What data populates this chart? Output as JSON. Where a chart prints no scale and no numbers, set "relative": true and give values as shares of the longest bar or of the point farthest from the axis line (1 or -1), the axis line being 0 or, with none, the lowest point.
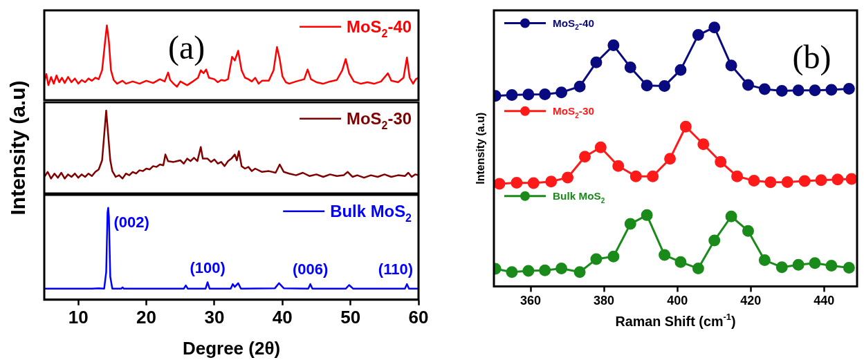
{
  "chart_data": [
    {
      "type": "line",
      "annotations": [
        "(a)"
      ],
      "xlim": [
        5,
        60
      ],
      "relative": true,
      "tick_labels": false,
      "legend": "top right",
      "marker": "none",
      "series": [
        {
          "name": "MoS$_{2}$-40",
          "color": "#ff0000",
          "x": [
            5,
            5.3,
            5.6,
            6,
            6.4,
            6.8,
            7.2,
            7.6,
            8,
            8.5,
            9,
            9.5,
            10,
            10.5,
            11,
            11.5,
            12,
            12.5,
            13,
            13.5,
            13.9,
            14.2,
            14.5,
            14.8,
            15.2,
            15.7,
            16.5,
            17,
            18,
            19,
            20,
            21,
            22,
            22.7,
            23.2,
            23.5,
            24,
            24.5,
            25,
            26,
            27,
            27.6,
            28,
            28.4,
            28.8,
            29.2,
            30,
            30.5,
            31,
            31.5,
            32,
            32.6,
            33,
            33.5,
            34,
            34.5,
            35,
            35.5,
            36,
            36.5,
            37,
            38,
            38.7,
            39.2,
            39.6,
            40,
            40.5,
            41,
            42,
            43.2,
            43.7,
            44.2,
            45,
            46,
            47,
            48,
            48.8,
            49.3,
            49.8,
            50.5,
            51.5,
            52.5,
            53.5,
            54.5,
            55.5,
            56,
            57,
            57.8,
            58.3,
            58.7,
            59.2,
            59.6,
            60
          ],
          "values": [
            0.25,
            0.35,
            0.2,
            0.31,
            0.22,
            0.33,
            0.24,
            0.3,
            0.23,
            0.31,
            0.24,
            0.29,
            0.22,
            0.27,
            0.24,
            0.29,
            0.26,
            0.3,
            0.28,
            0.4,
            0.75,
            1,
            0.78,
            0.4,
            0.27,
            0.22,
            0.26,
            0.22,
            0.25,
            0.22,
            0.26,
            0.23,
            0.28,
            0.25,
            0.37,
            0.27,
            0.22,
            0.18,
            0.25,
            0.2,
            0.26,
            0.3,
            0.4,
            0.36,
            0.41,
            0.3,
            0.28,
            0.24,
            0.27,
            0.26,
            0.28,
            0.58,
            0.53,
            0.66,
            0.4,
            0.3,
            0.28,
            0.25,
            0.3,
            0.22,
            0.26,
            0.26,
            0.4,
            0.71,
            0.55,
            0.32,
            0.24,
            0.22,
            0.25,
            0.28,
            0.41,
            0.28,
            0.24,
            0.22,
            0.25,
            0.27,
            0.4,
            0.55,
            0.36,
            0.25,
            0.22,
            0.24,
            0.22,
            0.25,
            0.36,
            0.26,
            0.24,
            0.3,
            0.57,
            0.3,
            0.22,
            0.28,
            0.3
          ]
        }
      ]
    },
    {
      "type": "line",
      "ylabel": "Intensity (a.u)",
      "xlim": [
        5,
        60
      ],
      "relative": true,
      "tick_labels": false,
      "legend": "top right",
      "marker": "none",
      "series": [
        {
          "name": "MoS$_{2}$-30",
          "color": "#800000",
          "x": [
            5,
            5.5,
            6,
            6.5,
            7,
            7.5,
            8,
            8.5,
            9,
            9.5,
            10,
            10.5,
            11,
            11.5,
            12,
            12.5,
            13,
            13.5,
            13.8,
            14.1,
            14.4,
            14.7,
            15,
            15.5,
            16,
            16.5,
            17,
            17.5,
            18,
            18.5,
            19,
            19.5,
            20,
            20.5,
            21,
            21.5,
            22,
            22.5,
            22.8,
            23.2,
            24,
            25,
            25.5,
            26,
            26.5,
            27,
            27.5,
            28,
            28.3,
            29,
            29.5,
            30,
            30.5,
            31,
            31.5,
            32,
            32.5,
            33,
            33.3,
            33.6,
            34,
            34.5,
            35,
            35.5,
            36,
            37,
            38,
            39,
            39.6,
            40.2,
            41,
            42,
            43,
            44,
            45,
            46,
            47,
            48,
            49,
            49.6,
            50.3,
            51,
            52,
            53,
            54,
            55,
            56,
            57,
            58,
            58.5,
            59,
            59.5,
            60
          ],
          "values": [
            0.2,
            0.26,
            0.18,
            0.24,
            0.19,
            0.25,
            0.18,
            0.23,
            0.2,
            0.24,
            0.19,
            0.23,
            0.2,
            0.24,
            0.21,
            0.26,
            0.29,
            0.4,
            0.7,
            1,
            0.7,
            0.4,
            0.27,
            0.2,
            0.22,
            0.18,
            0.24,
            0.22,
            0.26,
            0.24,
            0.28,
            0.27,
            0.3,
            0.29,
            0.33,
            0.32,
            0.35,
            0.34,
            0.47,
            0.39,
            0.38,
            0.4,
            0.36,
            0.42,
            0.39,
            0.43,
            0.39,
            0.56,
            0.42,
            0.42,
            0.38,
            0.41,
            0.36,
            0.38,
            0.33,
            0.39,
            0.42,
            0.47,
            0.4,
            0.51,
            0.33,
            0.3,
            0.32,
            0.27,
            0.3,
            0.26,
            0.27,
            0.25,
            0.35,
            0.26,
            0.24,
            0.22,
            0.25,
            0.21,
            0.23,
            0.2,
            0.23,
            0.21,
            0.22,
            0.26,
            0.2,
            0.22,
            0.19,
            0.22,
            0.2,
            0.23,
            0.2,
            0.22,
            0.21,
            0.25,
            0.2,
            0.23,
            0.22
          ]
        }
      ]
    },
    {
      "type": "line",
      "xlabel": "Degree (2θ)",
      "xlim": [
        5,
        60
      ],
      "xticks": [
        10,
        20,
        30,
        40,
        50,
        60
      ],
      "relative": true,
      "tick_labels": "x",
      "legend": "top right",
      "marker": "none",
      "annotations": [
        {
          "text": "(002)",
          "x": 14.4,
          "y": 1
        },
        {
          "text": "(100)",
          "x": 29,
          "y": 0.19
        },
        {
          "text": "(006)",
          "x": 44.1,
          "y": 0.17
        },
        {
          "text": "(110)",
          "x": 58.3,
          "y": 0.17
        }
      ],
      "series": [
        {
          "name": "Bulk MoS$_{2}$",
          "color": "#0000ff",
          "x": [
            5,
            8,
            10,
            12,
            13,
            13.8,
            14.1,
            14.3,
            14.4,
            14.5,
            14.7,
            15,
            16.3,
            16.5,
            16.7,
            20,
            25.5,
            25.8,
            26.1,
            28.7,
            29,
            29.3,
            32.4,
            32.7,
            33,
            33.5,
            33.9,
            38.9,
            39.5,
            40.2,
            43.8,
            44.1,
            44.4,
            49.3,
            49.8,
            50.4,
            58,
            58.3,
            58.6,
            60
          ],
          "values": [
            0.12,
            0.12,
            0.12,
            0.12,
            0.125,
            0.12,
            0.3,
            0.95,
            1,
            0.9,
            0.25,
            0.12,
            0.12,
            0.135,
            0.12,
            0.12,
            0.12,
            0.155,
            0.12,
            0.12,
            0.19,
            0.12,
            0.12,
            0.17,
            0.14,
            0.18,
            0.12,
            0.125,
            0.18,
            0.125,
            0.12,
            0.17,
            0.12,
            0.12,
            0.16,
            0.12,
            0.12,
            0.17,
            0.12,
            0.12
          ]
        }
      ]
    },
    {
      "type": "line",
      "annotations": [
        "(b)"
      ],
      "xlabel": "Raman Shift (cm$^{-1}$)",
      "ylabel": "Intensity (a.u)",
      "xlim": [
        350,
        449
      ],
      "xticks": [
        360,
        380,
        400,
        420,
        440
      ],
      "relative": true,
      "tick_labels": "x",
      "legend": "left",
      "marker": "circle",
      "series": [
        {
          "name": "MoS$_{2}$-40",
          "color": "#0a0a80",
          "x": [
            350.4,
            354.9,
            359.4,
            363.9,
            368.4,
            373.4,
            377.9,
            382.6,
            387.2,
            391.7,
            396.5,
            400.9,
            405.7,
            410.1,
            414.7,
            419.3,
            423.8,
            428.5,
            433,
            437.5,
            442,
            446.8
          ],
          "values": [
            0.736,
            0.739,
            0.741,
            0.742,
            0.749,
            0.772,
            0.865,
            0.931,
            0.846,
            0.776,
            0.774,
            0.836,
            0.971,
            1,
            0.853,
            0.778,
            0.762,
            0.755,
            0.757,
            0.757,
            0.759,
            0.763
          ]
        },
        {
          "name": "MoS$_{2}$-30",
          "color": "#ff1a1a",
          "x": [
            351.5,
            356.2,
            360.8,
            365.6,
            370.1,
            374.8,
            379.1,
            383.9,
            388.7,
            393.3,
            398,
            402.3,
            407.1,
            411.8,
            416.3,
            420.9,
            425.4,
            430,
            434.7,
            439.2,
            443.7,
            447.5
          ],
          "values": [
            0.396,
            0.4,
            0.399,
            0.405,
            0.42,
            0.501,
            0.537,
            0.465,
            0.425,
            0.425,
            0.493,
            0.617,
            0.549,
            0.481,
            0.425,
            0.408,
            0.402,
            0.403,
            0.407,
            0.41,
            0.413,
            0.415
          ]
        },
        {
          "name": "Bulk MoS$_{2}$",
          "color": "#1a8a1a",
          "x": [
            350.4,
            354.9,
            359.4,
            363.9,
            368.4,
            373.4,
            377.9,
            382.6,
            387.2,
            391.7,
            396.5,
            400.9,
            405.7,
            410.1,
            414.7,
            419.3,
            423.8,
            428.5,
            433,
            437.5,
            442,
            446.8
          ],
          "values": [
            0.068,
            0.055,
            0.06,
            0.062,
            0.069,
            0.055,
            0.105,
            0.115,
            0.241,
            0.275,
            0.121,
            0.094,
            0.069,
            0.177,
            0.27,
            0.214,
            0.101,
            0.074,
            0.083,
            0.09,
            0.08,
            0.072
          ]
        }
      ]
    }
  ]
}
